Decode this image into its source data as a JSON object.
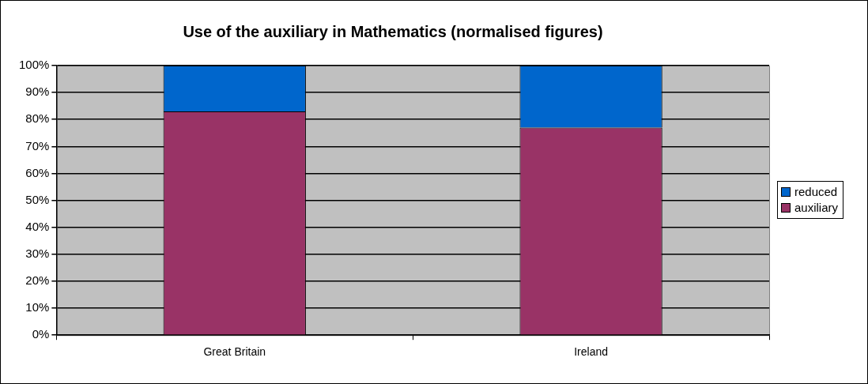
{
  "chart_data": {
    "type": "bar",
    "title": "Use of the auxiliary in Mathematics (normalised figures)",
    "categories": [
      "Great Britain",
      "Ireland"
    ],
    "stacked": true,
    "series": [
      {
        "name": "auxiliary",
        "color": "#993366",
        "values": [
          83,
          77
        ]
      },
      {
        "name": "reduced",
        "color": "#0066cc",
        "values": [
          17,
          23
        ]
      }
    ],
    "ylim": [
      0,
      100
    ],
    "yticks": [
      {
        "value": 0,
        "label": "0%"
      },
      {
        "value": 10,
        "label": "10%"
      },
      {
        "value": 20,
        "label": "20%"
      },
      {
        "value": 30,
        "label": "30%"
      },
      {
        "value": 40,
        "label": "40%"
      },
      {
        "value": 50,
        "label": "50%"
      },
      {
        "value": 60,
        "label": "60%"
      },
      {
        "value": 70,
        "label": "70%"
      },
      {
        "value": 80,
        "label": "80%"
      },
      {
        "value": 90,
        "label": "90%"
      },
      {
        "value": 100,
        "label": "100%"
      }
    ],
    "grid": "y",
    "legend": "right"
  }
}
